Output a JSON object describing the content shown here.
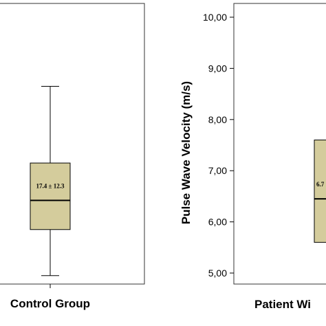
{
  "chart_data": [
    {
      "type": "box",
      "title": "",
      "categories": [
        "Control Group"
      ],
      "boxes": [
        {
          "category": "Control Group",
          "whisker_low": 4.95,
          "q1": 5.85,
          "median": 6.42,
          "q3": 7.15,
          "whisker_high": 8.65,
          "annotation": "17.4 ± 12.3"
        }
      ],
      "colors": {
        "box_fill": "#d4cc9c",
        "stroke": "#000000"
      }
    },
    {
      "type": "box",
      "title": "",
      "ylabel": "Pulse Wave Velocity (m/s)",
      "ylim": [
        5.0,
        10.0
      ],
      "yticks": [
        "5,00",
        "6,00",
        "7,00",
        "8,00",
        "9,00",
        "10,00"
      ],
      "categories": [
        "Patient Wi"
      ],
      "boxes": [
        {
          "category": "Patient Wi",
          "q1": 5.6,
          "median": 6.45,
          "q3": 7.6,
          "annotation": "6.7"
        }
      ],
      "colors": {
        "box_fill": "#d4cc9c",
        "stroke": "#000000"
      }
    }
  ]
}
